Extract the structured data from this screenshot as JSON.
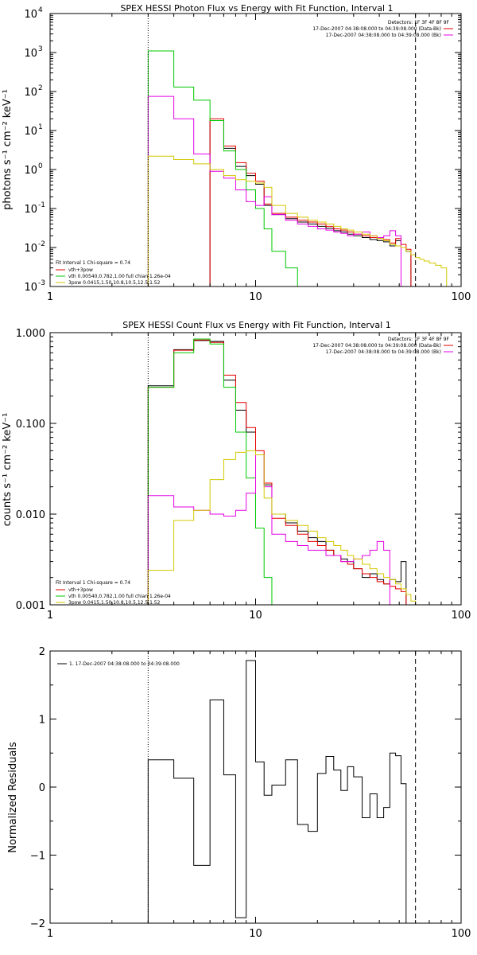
{
  "figure": {
    "x_ticks": [
      1,
      10,
      100
    ],
    "x_tick_labels": [
      "1",
      "10",
      "100"
    ],
    "energy_bins": [
      3,
      4,
      5,
      6,
      7,
      8,
      9,
      10,
      11,
      12,
      14,
      16,
      18,
      20,
      22,
      24,
      26,
      28,
      30,
      33,
      36,
      39,
      42,
      45,
      48,
      51,
      54,
      57,
      60,
      63,
      66,
      70,
      75,
      80,
      85,
      90,
      95,
      100
    ],
    "vlines": [
      {
        "x": 3.0,
        "style": "dotted",
        "color": "#000000"
      },
      {
        "x": 60.0,
        "style": "dashed",
        "color": "#000000"
      }
    ]
  },
  "chart_data": [
    {
      "type": "line",
      "step": true,
      "title": "SPEX HESSI Photon Flux vs Energy with Fit Function, Interval 1",
      "ylabel": "photons s⁻¹ cm⁻² keV⁻¹",
      "xscale": "log",
      "yscale": "log",
      "xlim": [
        1,
        100
      ],
      "ylim": [
        0.001,
        10000
      ],
      "y_ticks": [
        0.001,
        0.01,
        0.1,
        1,
        10,
        100,
        1000,
        10000
      ],
      "y_tick_base": [
        "10",
        "10",
        "10",
        "10",
        "10",
        "10",
        "10",
        "10"
      ],
      "y_tick_exp": [
        "-3",
        "-2",
        "-1",
        "0",
        "1",
        "2",
        "3",
        "4"
      ],
      "header_lines": [
        "Detectors: 1F 3F 4F 8F 9F",
        "17-Dec-2007 04:38:08.000 to 04:39:08.000 (Data-Bk)",
        "17-Dec-2007 04:38:08.000 to 04:39:08.000 (Bk)"
      ],
      "fit_text": [
        "Fit Interval 1    Chi-square = 0.74",
        "vth+3pow",
        "vth 0.00540,0.782,1.00   full chian 1.26e-04",
        "3pow 0.0415,1.50,10.8,10.5,12.5,1.52"
      ],
      "series": [
        {
          "color": "#000000",
          "y": [
            0,
            0,
            0,
            18,
            3.5,
            1.2,
            0.7,
            0.42,
            0.12,
            0.07,
            0.055,
            0.045,
            0.04,
            0.035,
            0.031,
            0.027,
            0.025,
            0.022,
            0.02,
            0.018,
            0.016,
            0.015,
            0.014,
            0.011,
            0.015,
            0.01,
            0.008
          ]
        },
        {
          "color": "#e60000",
          "y": [
            0,
            0,
            0,
            20,
            4.0,
            1.5,
            0.8,
            0.5,
            0.13,
            0.075,
            0.06,
            0.05,
            0.045,
            0.04,
            0.035,
            0.03,
            0.028,
            0.025,
            0.022,
            0.02,
            0.018,
            0.017,
            0.016,
            0.013,
            0.017,
            0.012,
            0.009
          ]
        },
        {
          "color": "#00c800",
          "y": [
            1100,
            130,
            60,
            18,
            3.0,
            1.0,
            0.3,
            0.1,
            0.03,
            0.008,
            0.003,
            0.001
          ]
        },
        {
          "color": "#e600e6",
          "y": [
            75,
            20,
            2.5,
            0.9,
            0.6,
            0.3,
            0.15,
            0.12,
            0.2,
            0.07,
            0.05,
            0.04,
            0.035,
            0.03,
            0.028,
            0.025,
            0.023,
            0.02,
            0.022,
            0.025,
            0.02,
            0.018,
            0.02,
            0.027,
            0.02
          ]
        },
        {
          "color": "#d2c800",
          "y": [
            2.2,
            1.8,
            1.4,
            1.0,
            0.7,
            0.55,
            0.5,
            0.45,
            0.35,
            0.12,
            0.075,
            0.06,
            0.05,
            0.045,
            0.04,
            0.035,
            0.03,
            0.028,
            0.025,
            0.022,
            0.02,
            0.017,
            0.015,
            0.012,
            0.011,
            0.01,
            0.008,
            0.0065,
            0.0055,
            0.005,
            0.0045,
            0.004,
            0.0035,
            0.003
          ]
        }
      ]
    },
    {
      "type": "line",
      "step": true,
      "title": "SPEX HESSI Count Flux vs Energy with Fit Function, Interval 1",
      "ylabel": "counts s⁻¹ cm⁻² keV⁻¹",
      "xscale": "log",
      "yscale": "log",
      "xlim": [
        1,
        100
      ],
      "ylim": [
        0.001,
        1.0
      ],
      "y_ticks": [
        0.001,
        0.01,
        0.1,
        1.0
      ],
      "y_tick_labels": [
        "0.001",
        "0.010",
        "0.100",
        "1.000"
      ],
      "header_lines": [
        "Detectors: 1F 3F 4F 8F 9F",
        "17-Dec-2007 04:38:08.000 to 04:39:08.000 (Data-Bk)",
        "17-Dec-2007 04:38:08.000 to 04:39:08.000 (Bk)"
      ],
      "fit_text": [
        "Fit Interval 1    Chi-square = 0.74",
        "vth+3pow",
        "vth 0.00540,0.782,1.00   full chian 1.26e-04",
        "3pow 0.0415,1.50,10.8,10.5,12.5,1.52"
      ],
      "series": [
        {
          "color": "#000000",
          "y": [
            0.26,
            0.65,
            0.82,
            0.8,
            0.3,
            0.14,
            0.08,
            0.045,
            0.021,
            0.01,
            0.008,
            0.0065,
            0.0055,
            0.005,
            0.004,
            0.0035,
            0.0032,
            0.003,
            0.0025,
            0.002,
            0.0022,
            0.0019,
            0.0017,
            0.0019,
            0.0018,
            0.003
          ]
        },
        {
          "color": "#e60000",
          "y": [
            0.25,
            0.64,
            0.83,
            0.78,
            0.34,
            0.17,
            0.09,
            0.05,
            0.022,
            0.009,
            0.0075,
            0.006,
            0.005,
            0.0045,
            0.004,
            0.0035,
            0.003,
            0.0028,
            0.0025,
            0.0022,
            0.002,
            0.0018,
            0.0017,
            0.0016,
            0.0015,
            0.0014
          ]
        },
        {
          "color": "#00c800",
          "y": [
            0.25,
            0.6,
            0.85,
            0.75,
            0.25,
            0.08,
            0.025,
            0.007,
            0.002,
            0.001
          ]
        },
        {
          "color": "#e600e6",
          "y": [
            0.016,
            0.012,
            0.011,
            0.01,
            0.0095,
            0.011,
            0.017,
            0.045,
            0.02,
            0.006,
            0.005,
            0.0045,
            0.004,
            0.004,
            0.0035,
            0.0035,
            0.003,
            0.003,
            0.0032,
            0.0035,
            0.004,
            0.005,
            0.004
          ]
        },
        {
          "color": "#d2c800",
          "y": [
            0.0024,
            0.0085,
            0.011,
            0.024,
            0.04,
            0.048,
            0.05,
            0.045,
            0.015,
            0.01,
            0.0085,
            0.0075,
            0.0065,
            0.0055,
            0.005,
            0.0045,
            0.004,
            0.0035,
            0.0032,
            0.0028,
            0.0025,
            0.0022,
            0.002,
            0.0019,
            0.0017,
            0.0015,
            0.0013,
            0.0011,
            0.001
          ]
        }
      ]
    },
    {
      "type": "line",
      "step": true,
      "ylabel": "Normalized Residuals",
      "xscale": "log",
      "yscale": "linear",
      "xlim": [
        1,
        100
      ],
      "ylim": [
        -2,
        2
      ],
      "y_ticks": [
        -2,
        -1,
        0,
        1,
        2
      ],
      "y_tick_labels": [
        "−2",
        "−1",
        "0",
        "1",
        "2"
      ],
      "legend": "1. 17-Dec-2007 04:38:08.000 to 04:39:08.000",
      "series": [
        {
          "color": "#000000",
          "y": [
            0.4,
            0.13,
            -1.15,
            1.28,
            0.18,
            -1.92,
            1.86,
            0.37,
            -0.12,
            0.03,
            0.4,
            -0.55,
            -0.65,
            0.2,
            0.45,
            0.25,
            -0.05,
            0.3,
            0.15,
            -0.45,
            -0.1,
            -0.45,
            -0.3,
            0.5,
            0.46,
            0.05
          ]
        }
      ]
    }
  ]
}
